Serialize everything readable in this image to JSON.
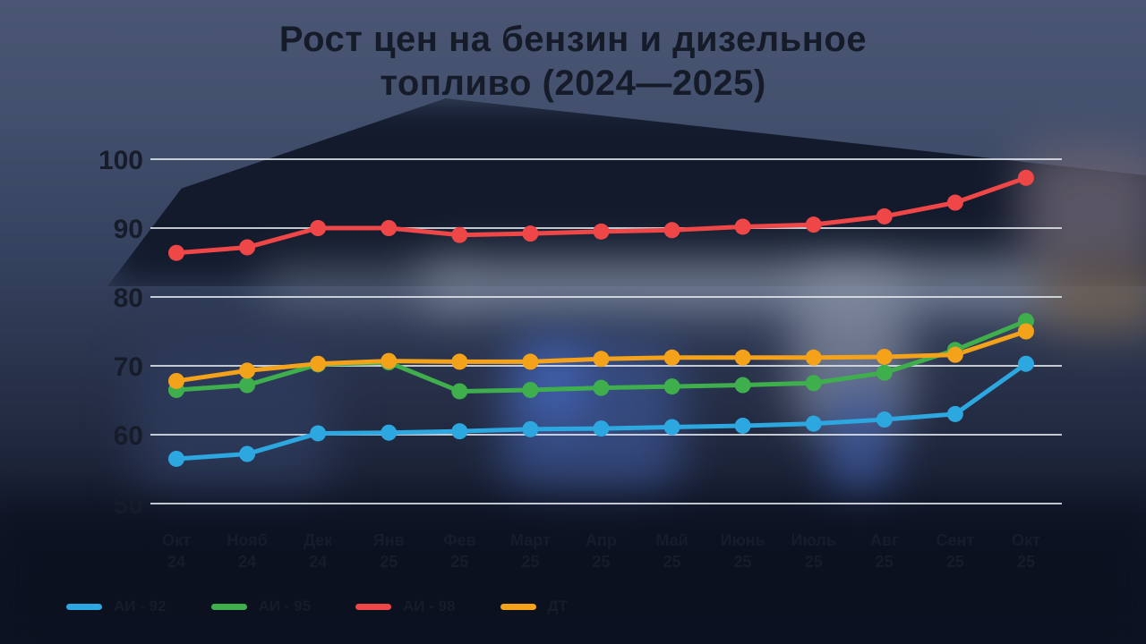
{
  "title": {
    "line1": "Рост цен на бензин и дизельное",
    "line2": "топливо (2024—2025)"
  },
  "chart_data": {
    "type": "line",
    "title": "Рост цен на бензин и дизельное топливо (2024—2025)",
    "ylim": [
      50,
      100
    ],
    "yticks": [
      50,
      60,
      70,
      80,
      90,
      100
    ],
    "grid": "horizontal",
    "legend_position": "bottom-left",
    "categories": [
      {
        "month": "Окт",
        "year": "24"
      },
      {
        "month": "Нояб",
        "year": "24"
      },
      {
        "month": "Дек",
        "year": "24"
      },
      {
        "month": "Янв",
        "year": "25"
      },
      {
        "month": "Фев",
        "year": "25"
      },
      {
        "month": "Март",
        "year": "25"
      },
      {
        "month": "Апр",
        "year": "25"
      },
      {
        "month": "Май",
        "year": "25"
      },
      {
        "month": "Июнь",
        "year": "25"
      },
      {
        "month": "Июль",
        "year": "25"
      },
      {
        "month": "Авг",
        "year": "25"
      },
      {
        "month": "Сент",
        "year": "25"
      },
      {
        "month": "Окт",
        "year": "25"
      }
    ],
    "series": [
      {
        "name": "АИ - 92",
        "color": "#2da7e0",
        "values": [
          56.5,
          57.2,
          60.2,
          60.3,
          60.5,
          60.8,
          60.9,
          61.1,
          61.3,
          61.6,
          62.2,
          63.0,
          70.3
        ]
      },
      {
        "name": "АИ - 95",
        "color": "#3faf4d",
        "values": [
          66.5,
          67.2,
          70.2,
          70.5,
          66.3,
          66.5,
          66.8,
          67.0,
          67.2,
          67.5,
          69.0,
          72.3,
          76.5
        ]
      },
      {
        "name": "АИ - 98",
        "color": "#ef4747",
        "values": [
          86.4,
          87.2,
          90.0,
          90.0,
          89.0,
          89.2,
          89.5,
          89.7,
          90.2,
          90.5,
          91.7,
          93.7,
          97.3
        ]
      },
      {
        "name": "ДТ",
        "color": "#f5a21b",
        "values": [
          67.8,
          69.3,
          70.3,
          70.7,
          70.6,
          70.6,
          71.0,
          71.2,
          71.2,
          71.2,
          71.3,
          71.6,
          75.0
        ]
      }
    ]
  }
}
